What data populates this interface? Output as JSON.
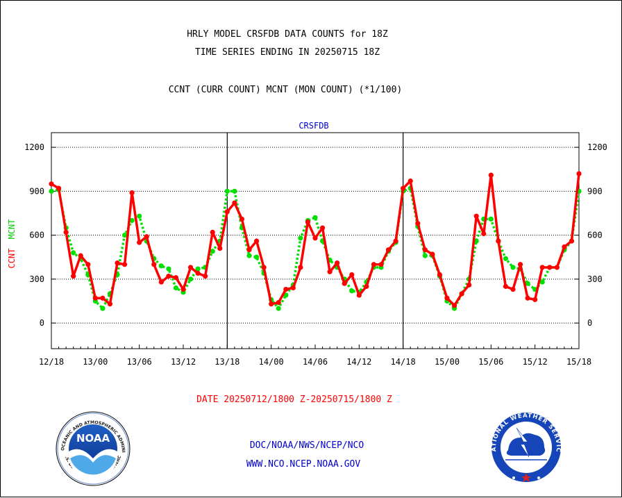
{
  "header": {
    "title1": "HRLY MODEL CRSFDB DATA COUNTS for 18Z",
    "title2": "TIME SERIES ENDING IN 20250715 18Z",
    "subtitle": "CCNT (CURR COUNT) MCNT (MON COUNT) (*1/100)"
  },
  "footer": {
    "date_range": "DATE 20250712/1800 Z-20250715/1800 Z",
    "org": "DOC/NOAA/NWS/NCEP/NCO",
    "url": "WWW.NCO.NCEP.NOAA.GOV"
  },
  "logos": {
    "noaa": {
      "text": "NOAA",
      "ring": "NATIONAL OCEANIC AND ATMOSPHERIC ADMINISTRATION",
      "ring_bottom": "U.S. DEPARTMENT OF COMMERCE"
    },
    "nws": {
      "ring": "NATIONAL WEATHER SERVICE"
    }
  },
  "colors": {
    "ccnt": "#ff0000",
    "mcnt": "#00e000",
    "title_blue": "#0000cc",
    "date_red": "#ff0000",
    "footer_blue": "#0000cc"
  },
  "chart_data": {
    "type": "line",
    "title": "CRSFDB",
    "ylabel_ccnt": "CCNT",
    "ylabel_mcnt": "MCNT",
    "ylim": [
      -175,
      1300
    ],
    "yticks": [
      0,
      300,
      600,
      900,
      1200
    ],
    "xticks": [
      "12/18",
      "13/00",
      "13/06",
      "13/12",
      "13/18",
      "14/00",
      "14/06",
      "14/12",
      "14/18",
      "15/00",
      "15/06",
      "15/12",
      "15/18"
    ],
    "day_dividers": [
      "13/18",
      "14/18"
    ],
    "grid": true,
    "hours_per_point": 1,
    "series": [
      {
        "name": "CCNT",
        "style": "solid",
        "values": [
          950,
          920,
          620,
          320,
          460,
          400,
          170,
          170,
          130,
          410,
          400,
          890,
          550,
          590,
          400,
          280,
          320,
          310,
          230,
          380,
          340,
          320,
          620,
          510,
          760,
          820,
          710,
          500,
          560,
          380,
          130,
          140,
          230,
          240,
          380,
          690,
          580,
          650,
          350,
          410,
          270,
          330,
          190,
          250,
          400,
          400,
          500,
          560,
          920,
          970,
          680,
          500,
          470,
          330,
          170,
          120,
          200,
          260,
          730,
          610,
          1010,
          560,
          250,
          230,
          400,
          170,
          160,
          380,
          380,
          380,
          520,
          560,
          1020
        ]
      },
      {
        "name": "MCNT",
        "style": "dotted",
        "values": [
          900,
          910,
          650,
          480,
          440,
          330,
          150,
          100,
          200,
          330,
          600,
          700,
          730,
          560,
          440,
          390,
          370,
          240,
          210,
          300,
          370,
          380,
          490,
          560,
          900,
          900,
          650,
          460,
          450,
          340,
          160,
          100,
          190,
          260,
          580,
          700,
          720,
          560,
          430,
          380,
          300,
          220,
          210,
          280,
          380,
          380,
          490,
          550,
          900,
          920,
          660,
          460,
          460,
          320,
          150,
          100,
          200,
          300,
          560,
          710,
          710,
          560,
          440,
          380,
          370,
          270,
          230,
          280,
          380,
          380,
          500,
          560,
          900
        ]
      }
    ]
  }
}
